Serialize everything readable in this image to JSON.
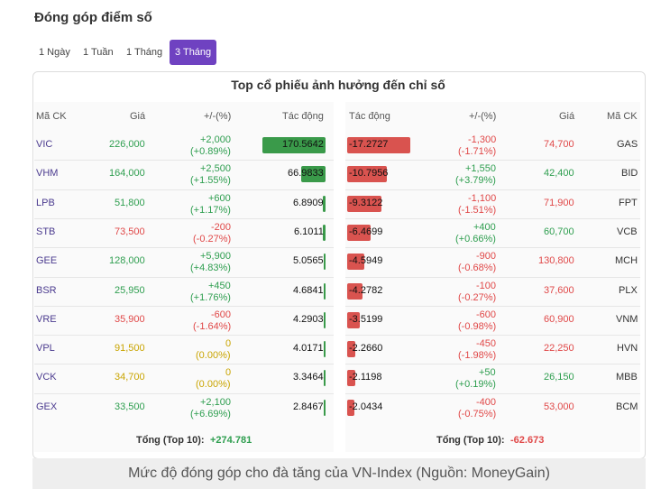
{
  "header": {
    "title": "Đóng góp điểm số"
  },
  "tabs": {
    "items": [
      "1 Ngày",
      "1 Tuần",
      "1 Tháng",
      "3 Tháng"
    ],
    "active": 3
  },
  "panel": {
    "title": "Top cổ phiếu ảnh hưởng đến chỉ số"
  },
  "left_table": {
    "columns": [
      "Mã CK",
      "Giá",
      "+/-(%)",
      "Tác động"
    ],
    "rows": [
      {
        "code": "VIC",
        "price": "226,000",
        "change": "+2,000",
        "pct": "(+0.89%)",
        "impact": "170.5642"
      },
      {
        "code": "VHM",
        "price": "164,000",
        "change": "+2,500",
        "pct": "(+1.55%)",
        "impact": "66.9833"
      },
      {
        "code": "LPB",
        "price": "51,800",
        "change": "+600",
        "pct": "(+1.17%)",
        "impact": "6.8909"
      },
      {
        "code": "STB",
        "price": "73,500",
        "change": "-200",
        "pct": "(-0.27%)",
        "impact": "6.1011"
      },
      {
        "code": "GEE",
        "price": "128,000",
        "change": "+5,900",
        "pct": "(+4.83%)",
        "impact": "5.0565"
      },
      {
        "code": "BSR",
        "price": "25,950",
        "change": "+450",
        "pct": "(+1.76%)",
        "impact": "4.6841"
      },
      {
        "code": "VRE",
        "price": "35,900",
        "change": "-600",
        "pct": "(-1.64%)",
        "impact": "4.2903"
      },
      {
        "code": "VPL",
        "price": "91,500",
        "change": "0",
        "pct": "(0.00%)",
        "impact": "4.0171"
      },
      {
        "code": "VCK",
        "price": "34,700",
        "change": "0",
        "pct": "(0.00%)",
        "impact": "3.3464"
      },
      {
        "code": "GEX",
        "price": "33,500",
        "change": "+2,100",
        "pct": "(+6.69%)",
        "impact": "2.8467"
      }
    ],
    "total_label": "Tổng (Top 10):",
    "total": "+274.781"
  },
  "right_table": {
    "columns": [
      "Tác động",
      "+/-(%)",
      "Giá",
      "Mã CK"
    ],
    "rows": [
      {
        "code": "GAS",
        "price": "74,700",
        "change": "-1,300",
        "pct": "(-1.71%)",
        "impact": "-17.2727"
      },
      {
        "code": "BID",
        "price": "42,400",
        "change": "+1,550",
        "pct": "(+3.79%)",
        "impact": "-10.7956"
      },
      {
        "code": "FPT",
        "price": "71,900",
        "change": "-1,100",
        "pct": "(-1.51%)",
        "impact": "-9.3122"
      },
      {
        "code": "VCB",
        "price": "60,700",
        "change": "+400",
        "pct": "(+0.66%)",
        "impact": "-6.4699"
      },
      {
        "code": "MCH",
        "price": "130,800",
        "change": "-900",
        "pct": "(-0.68%)",
        "impact": "-4.5949"
      },
      {
        "code": "PLX",
        "price": "37,600",
        "change": "-100",
        "pct": "(-0.27%)",
        "impact": "-4.2782"
      },
      {
        "code": "VNM",
        "price": "60,900",
        "change": "-600",
        "pct": "(-0.98%)",
        "impact": "-3.5199"
      },
      {
        "code": "HVN",
        "price": "22,250",
        "change": "-450",
        "pct": "(-1.98%)",
        "impact": "-2.2660"
      },
      {
        "code": "MBB",
        "price": "26,150",
        "change": "+50",
        "pct": "(+0.19%)",
        "impact": "-2.1198"
      },
      {
        "code": "BCM",
        "price": "53,000",
        "change": "-400",
        "pct": "(-0.75%)",
        "impact": "-2.0434"
      }
    ],
    "total_label": "Tổng (Top 10):",
    "total": "-62.673"
  },
  "caption": "Mức độ đóng góp cho đà tăng của VN-Index (Nguồn: MoneyGain)"
}
